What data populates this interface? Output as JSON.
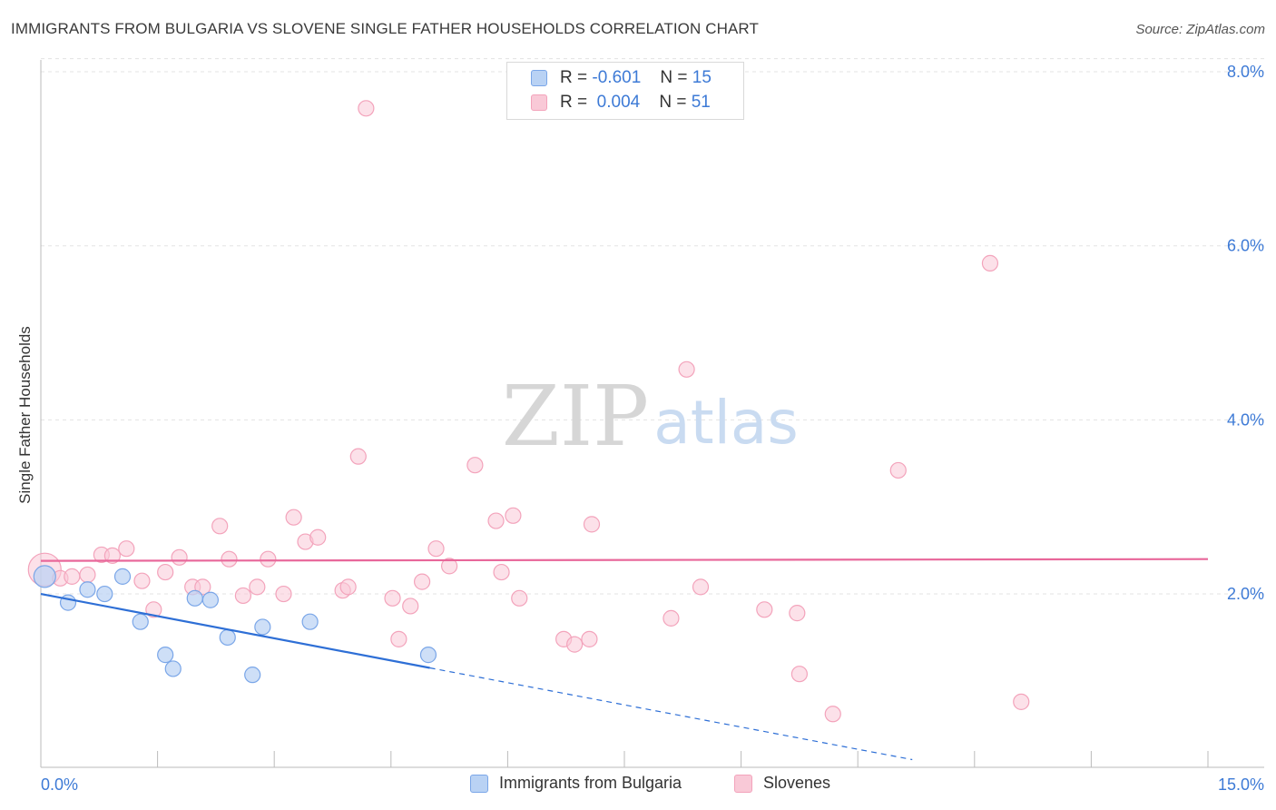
{
  "title": "IMMIGRANTS FROM BULGARIA VS SLOVENE SINGLE FATHER HOUSEHOLDS CORRELATION CHART",
  "source": "Source: ZipAtlas.com",
  "watermark": {
    "zip": "ZIP",
    "atlas": "atlas"
  },
  "legend_stats": [
    {
      "r_label": "R =",
      "r_value": "-0.601",
      "n_label": "N =",
      "n_value": "15"
    },
    {
      "r_label": "R =",
      "r_value": "0.004",
      "n_label": "N =",
      "n_value": "51"
    }
  ],
  "chart_data": {
    "type": "scatter",
    "title": "IMMIGRANTS FROM BULGARIA VS SLOVENE SINGLE FATHER HOUSEHOLDS CORRELATION CHART",
    "xlabel": "",
    "ylabel": "Single Father Households",
    "xlim": [
      0,
      15
    ],
    "ylim": [
      0,
      8.2
    ],
    "x_tick_labels": [
      "0.0%",
      "15.0%"
    ],
    "y_ticks": [
      2,
      4,
      6,
      8
    ],
    "y_tick_labels": [
      "2.0%",
      "4.0%",
      "6.0%",
      "8.0%"
    ],
    "grid": true,
    "legend_position": "bottom-center",
    "series": [
      {
        "name": "Immigrants from Bulgaria",
        "color": "#7aa6e8",
        "fill": "#b9d2f4",
        "line_color": "#2e6fd6",
        "trend": {
          "x0": 0.0,
          "y0": 2.0,
          "x1": 5.0,
          "y1": 1.15,
          "dashed_to_x": 11.2
        },
        "points": [
          [
            0.05,
            2.2
          ],
          [
            0.35,
            1.9
          ],
          [
            0.6,
            2.05
          ],
          [
            0.82,
            2.0
          ],
          [
            1.05,
            2.2
          ],
          [
            1.28,
            1.68
          ],
          [
            1.6,
            1.3
          ],
          [
            1.7,
            1.14
          ],
          [
            1.98,
            1.95
          ],
          [
            2.18,
            1.93
          ],
          [
            2.4,
            1.5
          ],
          [
            2.72,
            1.07
          ],
          [
            2.85,
            1.62
          ],
          [
            3.46,
            1.68
          ],
          [
            4.98,
            1.3
          ]
        ]
      },
      {
        "name": "Slovenes",
        "color": "#f3a3bb",
        "fill": "#f9c9d7",
        "line_color": "#e8679a",
        "trend": {
          "x0": 0.0,
          "y0": 2.38,
          "x1": 15.0,
          "y1": 2.4
        },
        "points": [
          [
            0.05,
            2.28
          ],
          [
            0.25,
            2.18
          ],
          [
            0.4,
            2.2
          ],
          [
            0.6,
            2.22
          ],
          [
            0.78,
            2.45
          ],
          [
            0.92,
            2.44
          ],
          [
            1.1,
            2.52
          ],
          [
            1.3,
            2.15
          ],
          [
            1.45,
            1.82
          ],
          [
            1.6,
            2.25
          ],
          [
            1.78,
            2.42
          ],
          [
            1.95,
            2.08
          ],
          [
            2.08,
            2.08
          ],
          [
            2.3,
            2.78
          ],
          [
            2.42,
            2.4
          ],
          [
            2.6,
            1.98
          ],
          [
            2.78,
            2.08
          ],
          [
            2.92,
            2.4
          ],
          [
            3.12,
            2.0
          ],
          [
            3.25,
            2.88
          ],
          [
            3.4,
            2.6
          ],
          [
            3.56,
            2.65
          ],
          [
            3.88,
            2.04
          ],
          [
            3.95,
            2.08
          ],
          [
            4.08,
            3.58
          ],
          [
            4.18,
            7.58
          ],
          [
            4.52,
            1.95
          ],
          [
            4.6,
            1.48
          ],
          [
            4.75,
            1.86
          ],
          [
            4.9,
            2.14
          ],
          [
            5.08,
            2.52
          ],
          [
            5.25,
            2.32
          ],
          [
            5.58,
            3.48
          ],
          [
            5.85,
            2.84
          ],
          [
            5.92,
            2.25
          ],
          [
            6.07,
            2.9
          ],
          [
            6.15,
            1.95
          ],
          [
            6.72,
            1.48
          ],
          [
            6.86,
            1.42
          ],
          [
            7.05,
            1.48
          ],
          [
            7.08,
            2.8
          ],
          [
            8.1,
            1.72
          ],
          [
            8.3,
            4.58
          ],
          [
            8.48,
            2.08
          ],
          [
            9.3,
            1.82
          ],
          [
            9.72,
            1.78
          ],
          [
            9.75,
            1.08
          ],
          [
            10.18,
            0.62
          ],
          [
            11.02,
            3.42
          ],
          [
            12.2,
            5.8
          ],
          [
            12.6,
            0.76
          ]
        ]
      }
    ]
  },
  "legend_series": [
    {
      "label": "Immigrants from Bulgaria",
      "swatch_fill": "#b9d2f4",
      "swatch_border": "#7aa6e8"
    },
    {
      "label": "Slovenes",
      "swatch_fill": "#f9c9d7",
      "swatch_border": "#f3a3bb"
    }
  ]
}
